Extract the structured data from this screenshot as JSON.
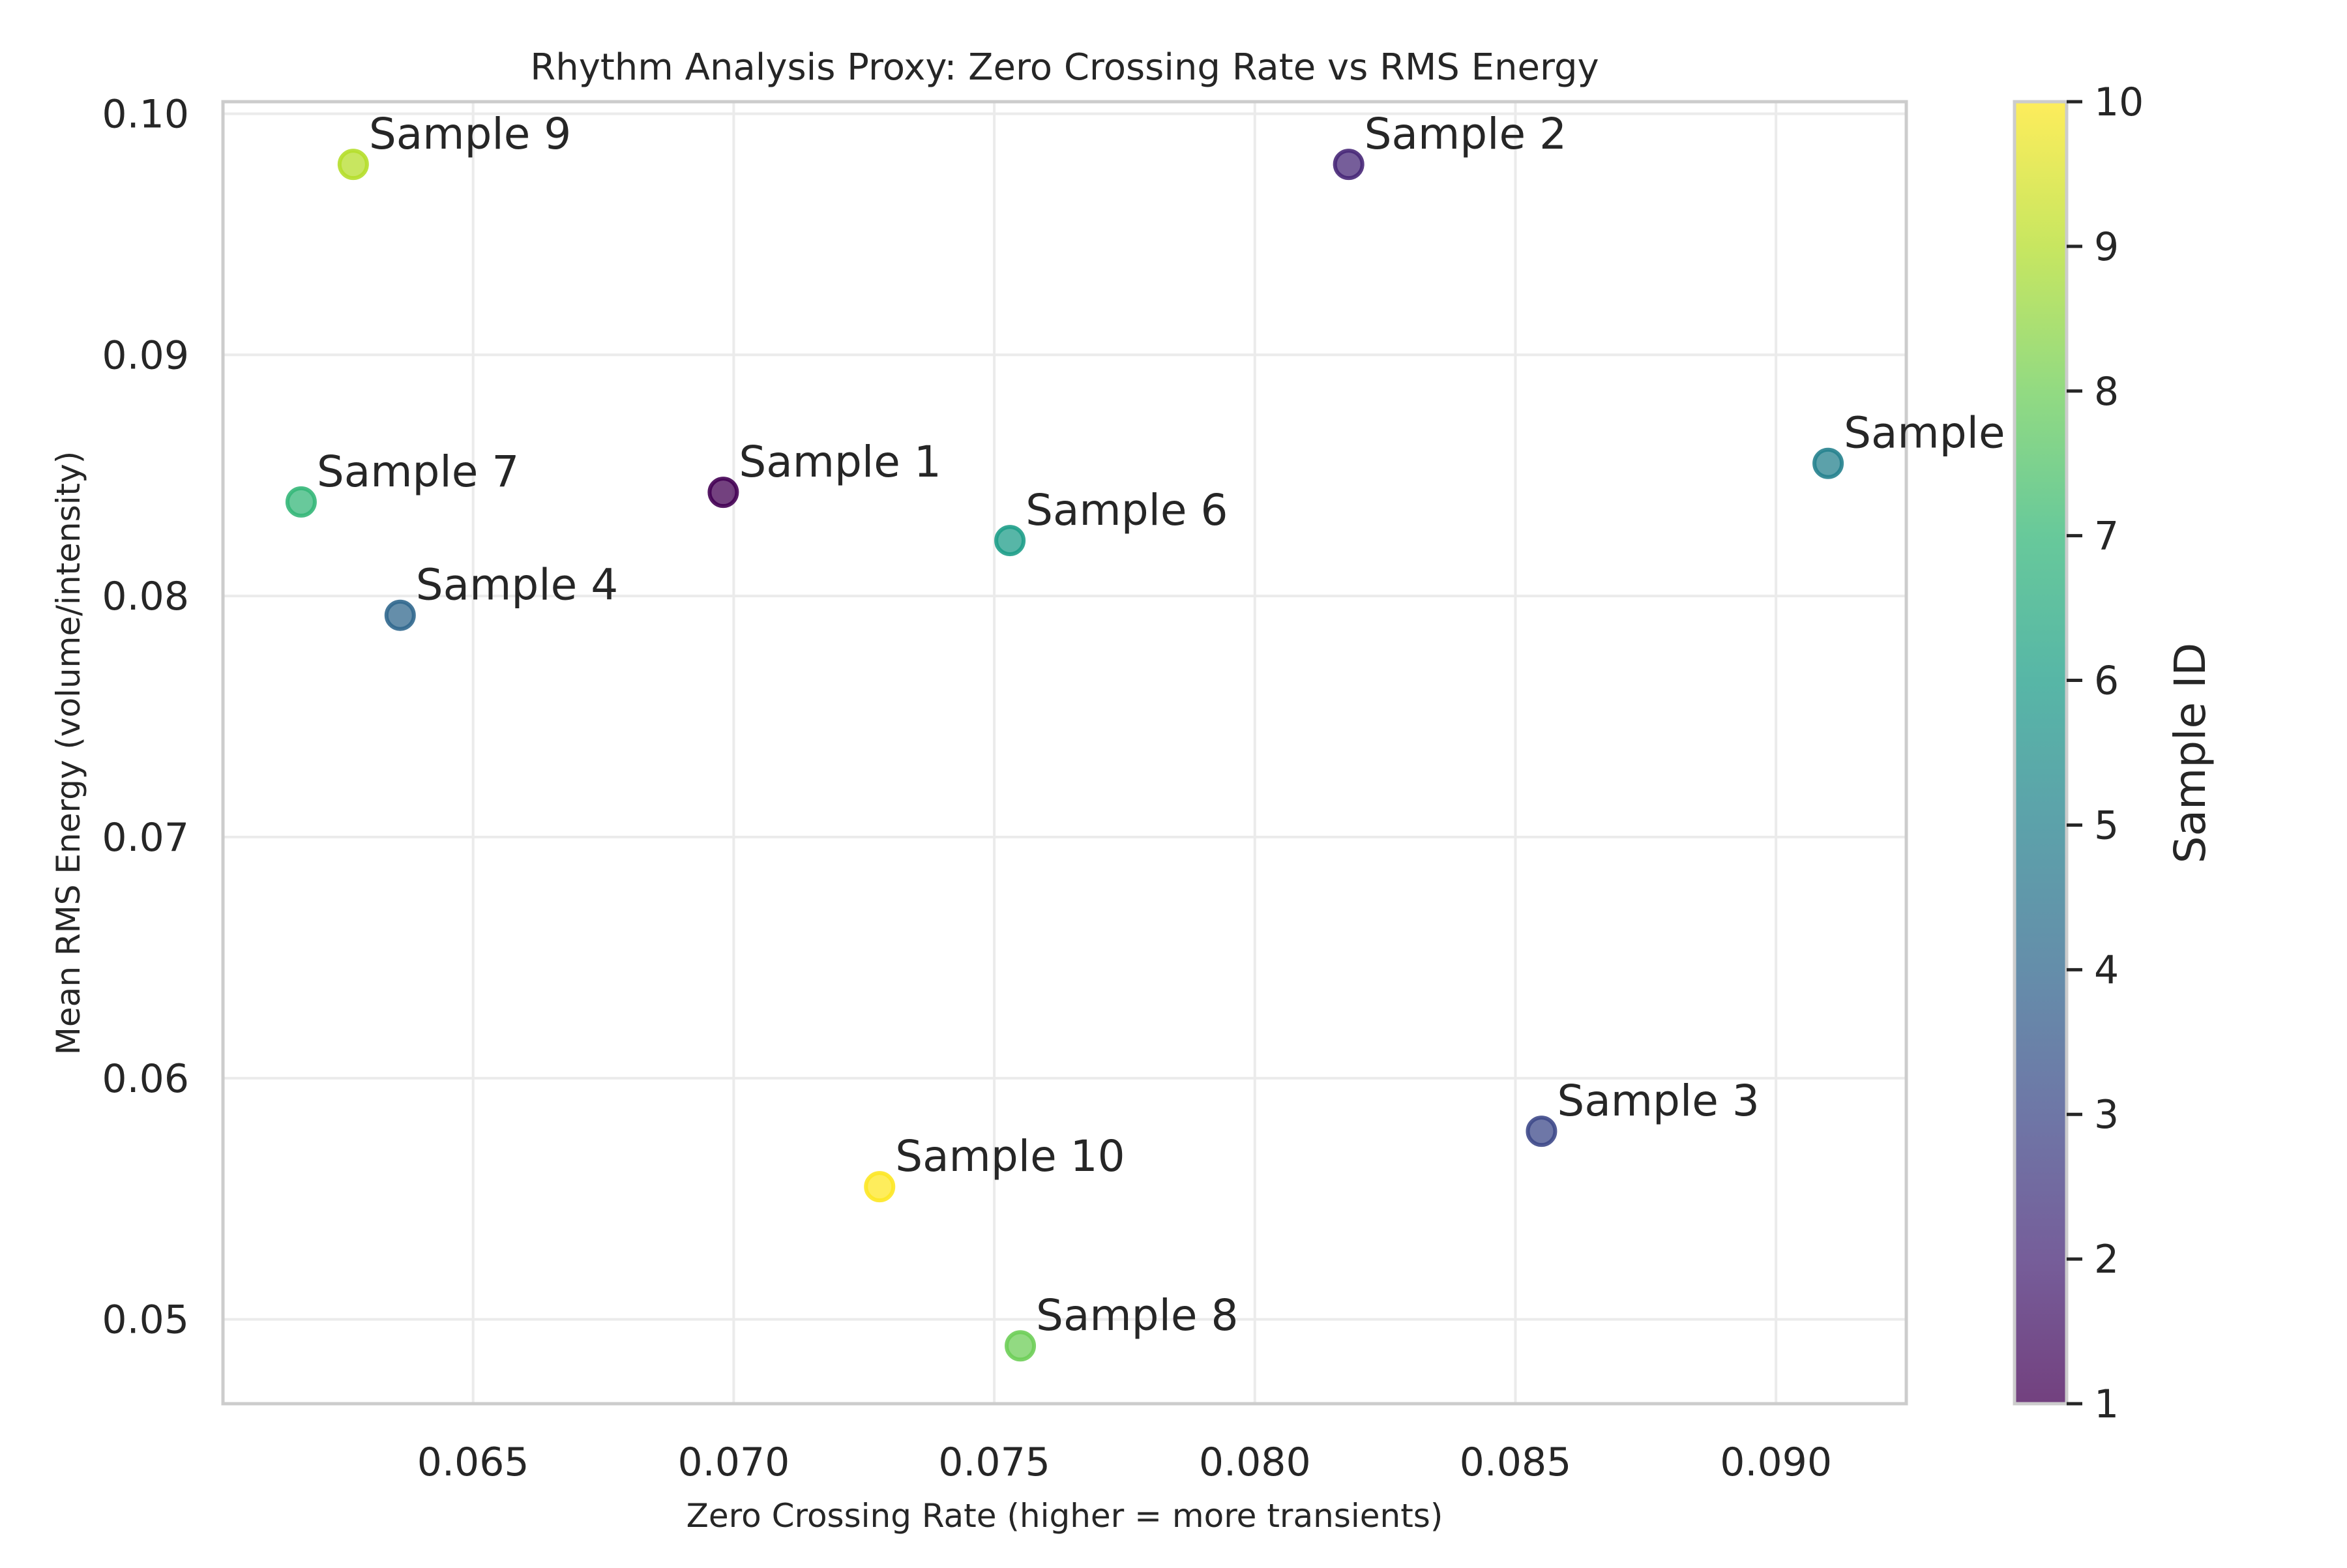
{
  "chart_data": {
    "type": "scatter",
    "title": "Rhythm Analysis Proxy: Zero Crossing Rate vs RMS Energy",
    "xlabel": "Zero Crossing Rate (higher = more transients)",
    "ylabel": "Mean RMS Energy (volume/intensity)",
    "xlim": [
      0.0602,
      0.0925
    ],
    "ylim": [
      0.0465,
      0.1005
    ],
    "xticks": [
      "0.065",
      "0.070",
      "0.075",
      "0.080",
      "0.085",
      "0.090"
    ],
    "yticks": [
      "0.05",
      "0.06",
      "0.07",
      "0.08",
      "0.09",
      "0.10"
    ],
    "grid": true,
    "points": [
      {
        "label": "Sample 1",
        "id": 1,
        "x": 0.0698,
        "y": 0.0843
      },
      {
        "label": "Sample 2",
        "id": 2,
        "x": 0.0818,
        "y": 0.0979
      },
      {
        "label": "Sample 3",
        "id": 3,
        "x": 0.0855,
        "y": 0.0578
      },
      {
        "label": "Sample 4",
        "id": 4,
        "x": 0.0636,
        "y": 0.0792
      },
      {
        "label": "Sample",
        "id": 5,
        "x": 0.091,
        "y": 0.0855
      },
      {
        "label": "Sample 6",
        "id": 6,
        "x": 0.0753,
        "y": 0.0823
      },
      {
        "label": "Sample 7",
        "id": 7,
        "x": 0.0617,
        "y": 0.0839
      },
      {
        "label": "Sample 8",
        "id": 8,
        "x": 0.0755,
        "y": 0.0489
      },
      {
        "label": "Sample 9",
        "id": 9,
        "x": 0.0627,
        "y": 0.0979
      },
      {
        "label": "Sample 10",
        "id": 10,
        "x": 0.0728,
        "y": 0.0555
      }
    ],
    "colorbar": {
      "label": "Sample ID",
      "range": [
        1,
        10
      ],
      "ticks": [
        "1",
        "2",
        "3",
        "4",
        "5",
        "6",
        "7",
        "8",
        "9",
        "10"
      ],
      "colormap": "viridis",
      "colors": [
        "#440154",
        "#482878",
        "#3e4989",
        "#31688e",
        "#26828e",
        "#1f9e89",
        "#35b779",
        "#6ece58",
        "#b5de2b",
        "#fde725"
      ]
    },
    "point_alpha": 0.75
  }
}
